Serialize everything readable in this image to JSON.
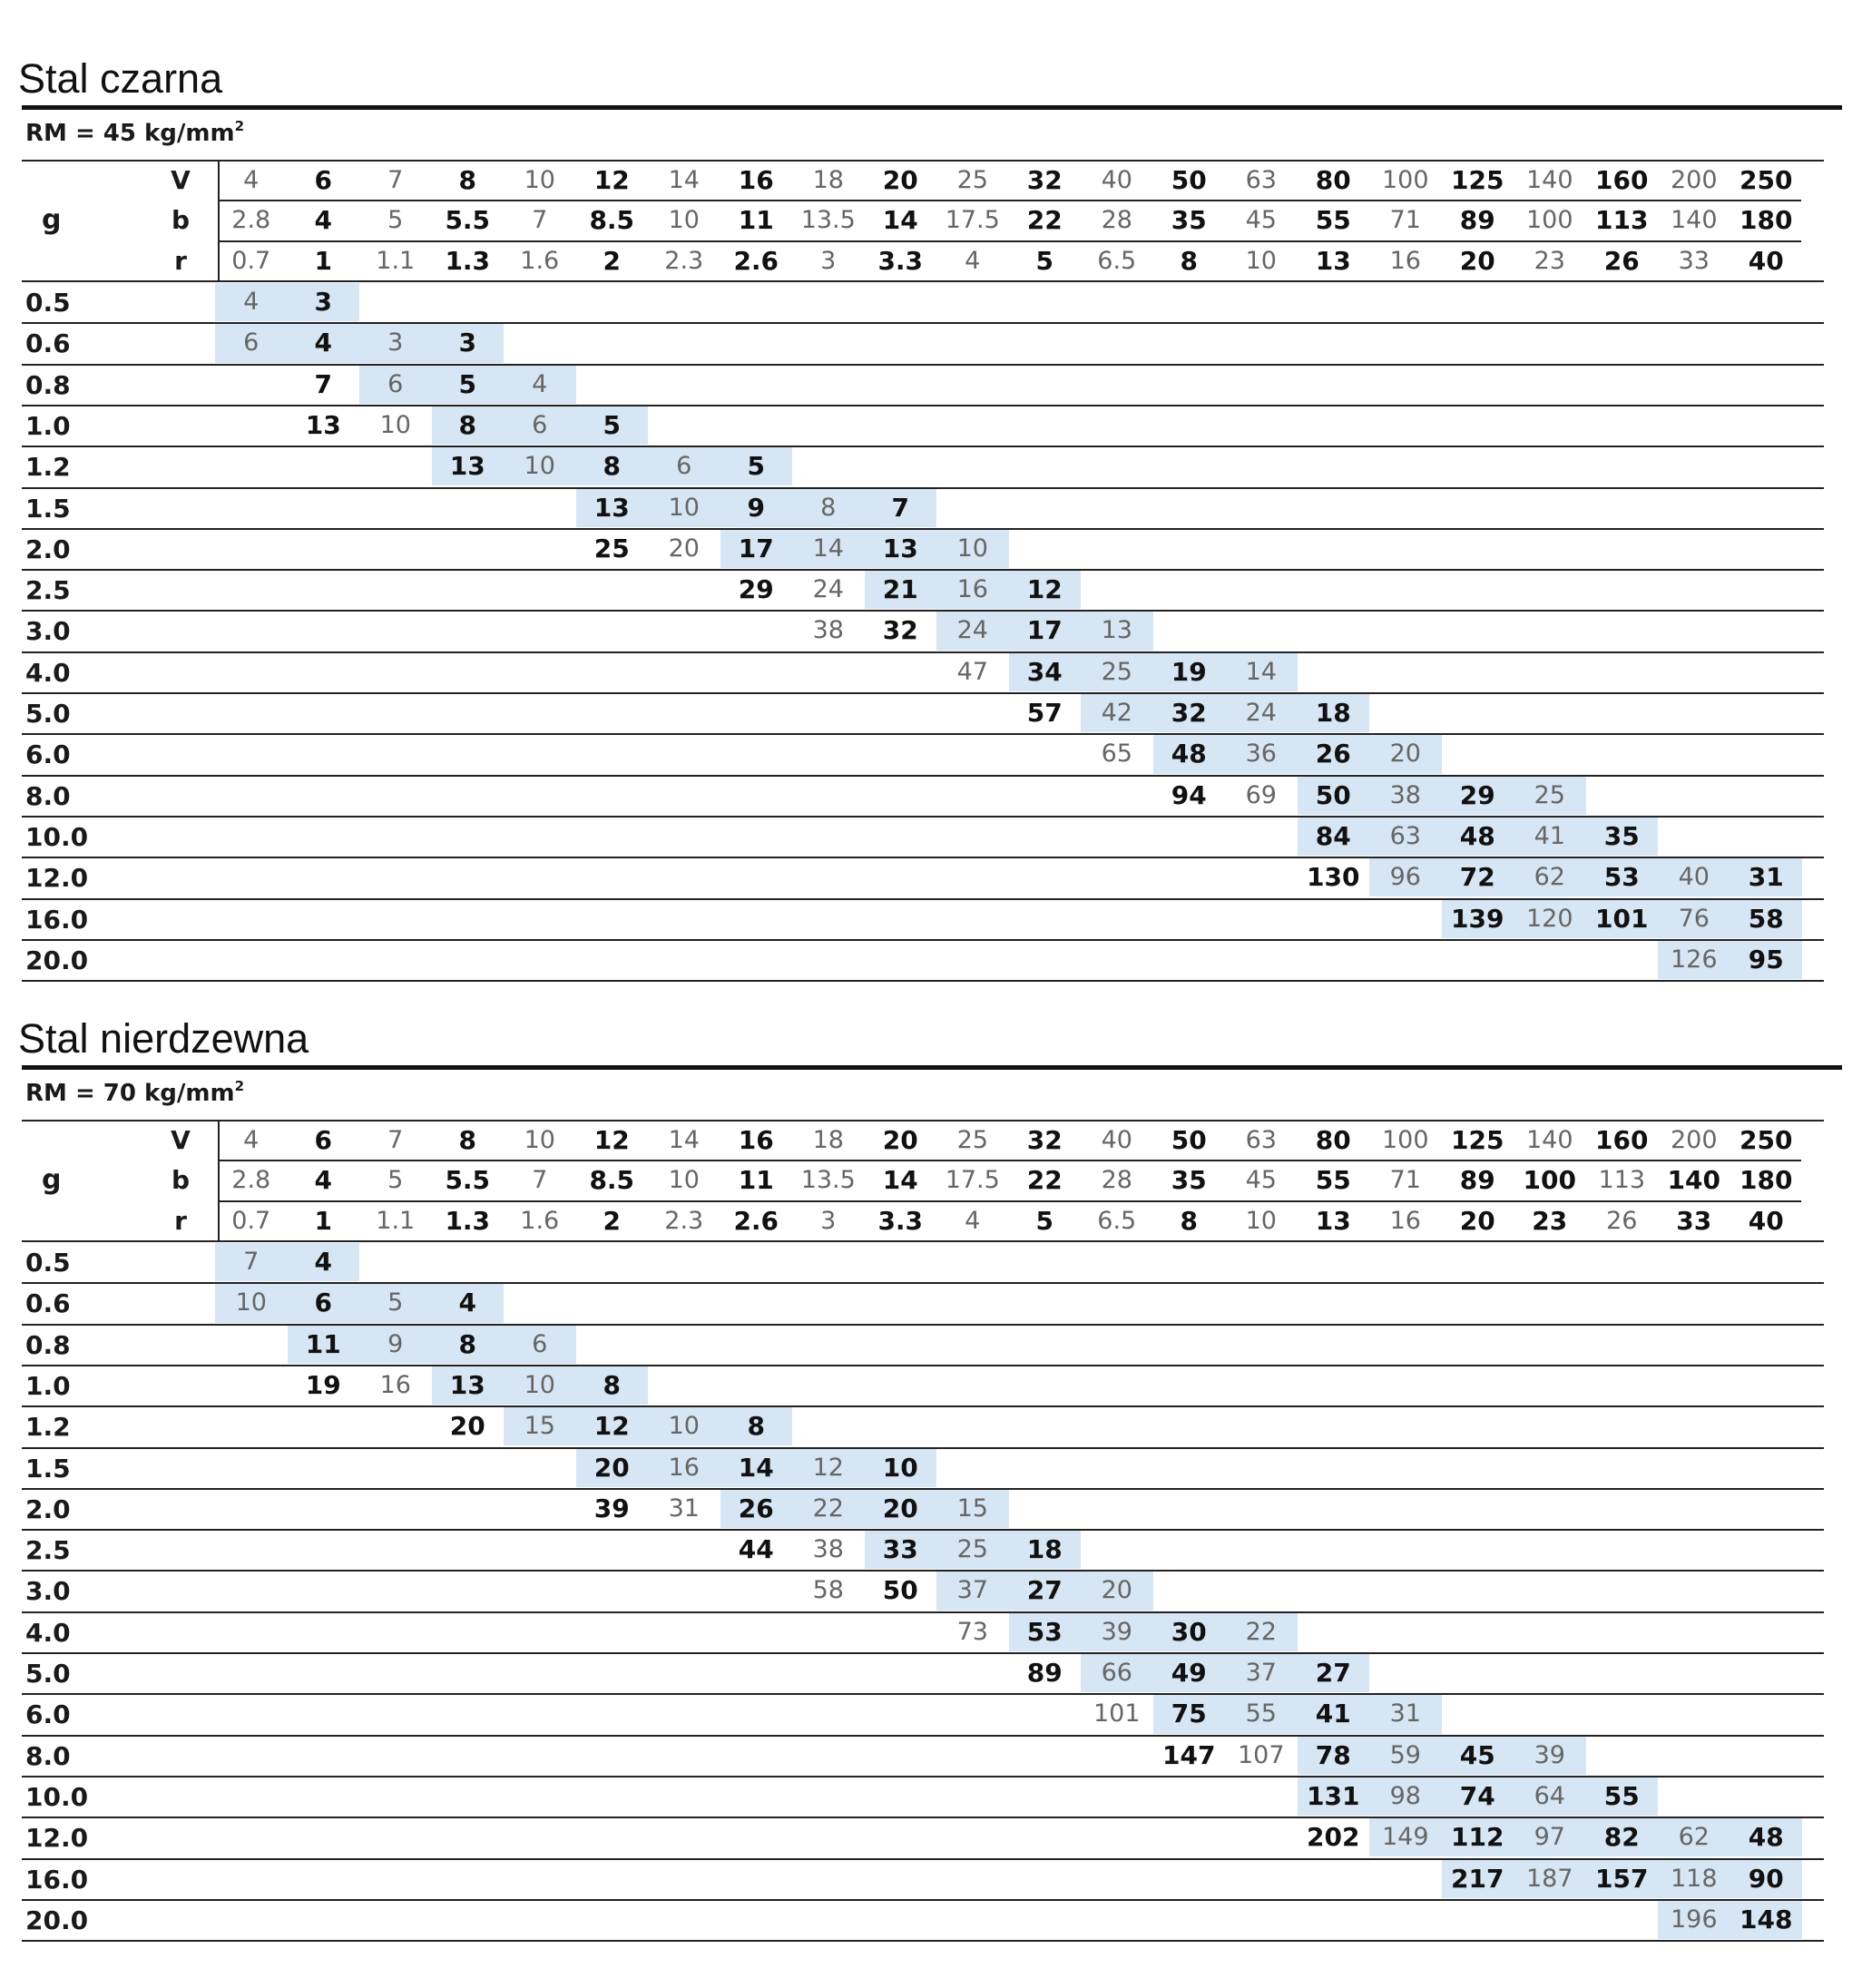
{
  "sections": [
    {
      "title": "Stal czarna",
      "rm_prefix": "RM = 45 kg/mm",
      "rm_sup": "2",
      "g_label": "g",
      "header_keys": [
        "V",
        "b",
        "r"
      ],
      "V": [
        "4",
        "6",
        "7",
        "8",
        "10",
        "12",
        "14",
        "16",
        "18",
        "20",
        "25",
        "32",
        "40",
        "50",
        "63",
        "80",
        "100",
        "125",
        "140",
        "160",
        "200",
        "250"
      ],
      "b": [
        "2.8",
        "4",
        "5",
        "5.5",
        "7",
        "8.5",
        "10",
        "11",
        "13.5",
        "14",
        "17.5",
        "22",
        "28",
        "35",
        "45",
        "55",
        "71",
        "89",
        "100",
        "113",
        "140",
        "180"
      ],
      "r": [
        "0.7",
        "1",
        "1.1",
        "1.3",
        "1.6",
        "2",
        "2.3",
        "2.6",
        "3",
        "3.3",
        "4",
        "5",
        "6.5",
        "8",
        "10",
        "13",
        "16",
        "20",
        "23",
        "26",
        "33",
        "40"
      ],
      "bold_cols": [
        1,
        3,
        5,
        7,
        9,
        11,
        13,
        15,
        17,
        19,
        21
      ],
      "b_bold_cols": [
        1,
        3,
        5,
        7,
        9,
        11,
        13,
        15,
        17,
        19,
        21
      ],
      "r_bold_cols": [
        1,
        3,
        5,
        7,
        9,
        11,
        13,
        15,
        17,
        19,
        21
      ],
      "rows": [
        {
          "g": "0.5",
          "start": 0,
          "hl": [
            0,
            1
          ],
          "vals": [
            "4",
            "3"
          ]
        },
        {
          "g": "0.6",
          "start": 0,
          "hl": [
            0,
            3
          ],
          "vals": [
            "6",
            "4",
            "3",
            "3"
          ]
        },
        {
          "g": "0.8",
          "start": 1,
          "hl": [
            2,
            4
          ],
          "vals": [
            "7",
            "6",
            "5",
            "4"
          ]
        },
        {
          "g": "1.0",
          "start": 1,
          "hl": [
            3,
            5
          ],
          "vals": [
            "13",
            "10",
            "8",
            "6",
            "5"
          ]
        },
        {
          "g": "1.2",
          "start": 3,
          "hl": [
            3,
            7
          ],
          "vals": [
            "13",
            "10",
            "8",
            "6",
            "5"
          ]
        },
        {
          "g": "1.5",
          "start": 5,
          "hl": [
            5,
            9
          ],
          "vals": [
            "13",
            "10",
            "9",
            "8",
            "7"
          ]
        },
        {
          "g": "2.0",
          "start": 5,
          "hl": [
            7,
            10
          ],
          "vals": [
            "25",
            "20",
            "17",
            "14",
            "13",
            "10"
          ]
        },
        {
          "g": "2.5",
          "start": 7,
          "hl": [
            9,
            11
          ],
          "vals": [
            "29",
            "24",
            "21",
            "16",
            "12"
          ]
        },
        {
          "g": "3.0",
          "start": 8,
          "hl": [
            10,
            12
          ],
          "vals": [
            "38",
            "32",
            "24",
            "17",
            "13"
          ]
        },
        {
          "g": "4.0",
          "start": 10,
          "hl": [
            11,
            14
          ],
          "vals": [
            "47",
            "34",
            "25",
            "19",
            "14"
          ]
        },
        {
          "g": "5.0",
          "start": 11,
          "hl": [
            12,
            15
          ],
          "vals": [
            "57",
            "42",
            "32",
            "24",
            "18"
          ]
        },
        {
          "g": "6.0",
          "start": 12,
          "hl": [
            13,
            16
          ],
          "vals": [
            "65",
            "48",
            "36",
            "26",
            "20"
          ]
        },
        {
          "g": "8.0",
          "start": 13,
          "hl": [
            15,
            18
          ],
          "vals": [
            "94",
            "69",
            "50",
            "38",
            "29",
            "25"
          ]
        },
        {
          "g": "10.0",
          "start": 15,
          "hl": [
            15,
            19
          ],
          "vals": [
            "84",
            "63",
            "48",
            "41",
            "35"
          ]
        },
        {
          "g": "12.0",
          "start": 15,
          "hl": [
            16,
            21
          ],
          "vals": [
            "130",
            "96",
            "72",
            "62",
            "53",
            "40",
            "31"
          ]
        },
        {
          "g": "16.0",
          "start": 17,
          "hl": [
            17,
            21
          ],
          "vals": [
            "139",
            "120",
            "101",
            "76",
            "58"
          ]
        },
        {
          "g": "20.0",
          "start": 20,
          "hl": [
            20,
            21
          ],
          "vals": [
            "126",
            "95"
          ]
        }
      ]
    },
    {
      "title": "Stal nierdzewna",
      "rm_prefix": "RM = 70 kg/mm",
      "rm_sup": "2",
      "g_label": "g",
      "header_keys": [
        "V",
        "b",
        "r"
      ],
      "V": [
        "4",
        "6",
        "7",
        "8",
        "10",
        "12",
        "14",
        "16",
        "18",
        "20",
        "25",
        "32",
        "40",
        "50",
        "63",
        "80",
        "100",
        "125",
        "140",
        "160",
        "200",
        "250"
      ],
      "b": [
        "2.8",
        "4",
        "5",
        "5.5",
        "7",
        "8.5",
        "10",
        "11",
        "13.5",
        "14",
        "17.5",
        "22",
        "28",
        "35",
        "45",
        "55",
        "71",
        "89",
        "100",
        "113",
        "140",
        "180"
      ],
      "r": [
        "0.7",
        "1",
        "1.1",
        "1.3",
        "1.6",
        "2",
        "2.3",
        "2.6",
        "3",
        "3.3",
        "4",
        "5",
        "6.5",
        "8",
        "10",
        "13",
        "16",
        "20",
        "23",
        "26",
        "33",
        "40"
      ],
      "bold_cols": [
        1,
        3,
        5,
        7,
        9,
        11,
        13,
        15,
        17,
        19,
        21
      ],
      "b_bold_cols": [
        1,
        3,
        5,
        7,
        9,
        11,
        13,
        15,
        17,
        18,
        20,
        21
      ],
      "r_bold_cols": [
        1,
        3,
        5,
        7,
        9,
        11,
        13,
        15,
        17,
        18,
        20,
        21
      ],
      "rows": [
        {
          "g": "0.5",
          "start": 0,
          "hl": [
            0,
            1
          ],
          "vals": [
            "7",
            "4"
          ]
        },
        {
          "g": "0.6",
          "start": 0,
          "hl": [
            0,
            3
          ],
          "vals": [
            "10",
            "6",
            "5",
            "4"
          ]
        },
        {
          "g": "0.8",
          "start": 1,
          "hl": [
            1,
            4
          ],
          "vals": [
            "11",
            "9",
            "8",
            "6"
          ]
        },
        {
          "g": "1.0",
          "start": 1,
          "hl": [
            3,
            5
          ],
          "vals": [
            "19",
            "16",
            "13",
            "10",
            "8"
          ]
        },
        {
          "g": "1.2",
          "start": 3,
          "hl": [
            4,
            7
          ],
          "vals": [
            "20",
            "15",
            "12",
            "10",
            "8"
          ]
        },
        {
          "g": "1.5",
          "start": 5,
          "hl": [
            5,
            9
          ],
          "vals": [
            "20",
            "16",
            "14",
            "12",
            "10"
          ]
        },
        {
          "g": "2.0",
          "start": 5,
          "hl": [
            7,
            10
          ],
          "vals": [
            "39",
            "31",
            "26",
            "22",
            "20",
            "15"
          ]
        },
        {
          "g": "2.5",
          "start": 7,
          "hl": [
            9,
            11
          ],
          "vals": [
            "44",
            "38",
            "33",
            "25",
            "18"
          ]
        },
        {
          "g": "3.0",
          "start": 8,
          "hl": [
            10,
            12
          ],
          "vals": [
            "58",
            "50",
            "37",
            "27",
            "20"
          ]
        },
        {
          "g": "4.0",
          "start": 10,
          "hl": [
            11,
            14
          ],
          "vals": [
            "73",
            "53",
            "39",
            "30",
            "22"
          ]
        },
        {
          "g": "5.0",
          "start": 11,
          "hl": [
            12,
            15
          ],
          "vals": [
            "89",
            "66",
            "49",
            "37",
            "27"
          ]
        },
        {
          "g": "6.0",
          "start": 12,
          "hl": [
            13,
            16
          ],
          "vals": [
            "101",
            "75",
            "55",
            "41",
            "31"
          ]
        },
        {
          "g": "8.0",
          "start": 13,
          "hl": [
            15,
            18
          ],
          "vals": [
            "147",
            "107",
            "78",
            "59",
            "45",
            "39"
          ]
        },
        {
          "g": "10.0",
          "start": 15,
          "hl": [
            15,
            19
          ],
          "vals": [
            "131",
            "98",
            "74",
            "64",
            "55"
          ]
        },
        {
          "g": "12.0",
          "start": 15,
          "hl": [
            16,
            21
          ],
          "vals": [
            "202",
            "149",
            "112",
            "97",
            "82",
            "62",
            "48"
          ]
        },
        {
          "g": "16.0",
          "start": 17,
          "hl": [
            17,
            21
          ],
          "vals": [
            "217",
            "187",
            "157",
            "118",
            "90"
          ]
        },
        {
          "g": "20.0",
          "start": 20,
          "hl": [
            20,
            21
          ],
          "vals": [
            "196",
            "148"
          ]
        }
      ]
    }
  ]
}
